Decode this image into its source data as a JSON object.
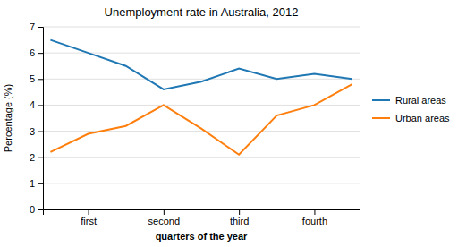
{
  "chart_data": {
    "type": "line",
    "title": "Unemployment rate in Australia, 2012",
    "xlabel": "quarters of the year",
    "ylabel": "Percentage (%)",
    "x": [
      0,
      1,
      2,
      3,
      4,
      5,
      6,
      7,
      8
    ],
    "xlim": [
      -0.2,
      8.2
    ],
    "xticks": [
      {
        "value": 1,
        "label": "first"
      },
      {
        "value": 3,
        "label": "second"
      },
      {
        "value": 5,
        "label": "third"
      },
      {
        "value": 7,
        "label": "fourth"
      }
    ],
    "ylim": [
      0,
      7
    ],
    "yticks": [
      0,
      1,
      2,
      3,
      4,
      5,
      6,
      7
    ],
    "series": [
      {
        "name": "Rural areas",
        "values": [
          6.5,
          6.0,
          5.5,
          4.6,
          4.9,
          5.4,
          5.0,
          5.2,
          5.0
        ]
      },
      {
        "name": "Urban areas",
        "values": [
          2.2,
          2.9,
          3.2,
          4.0,
          3.1,
          2.1,
          3.6,
          4.0,
          4.8
        ]
      }
    ],
    "grid": "y",
    "legend": "right"
  }
}
